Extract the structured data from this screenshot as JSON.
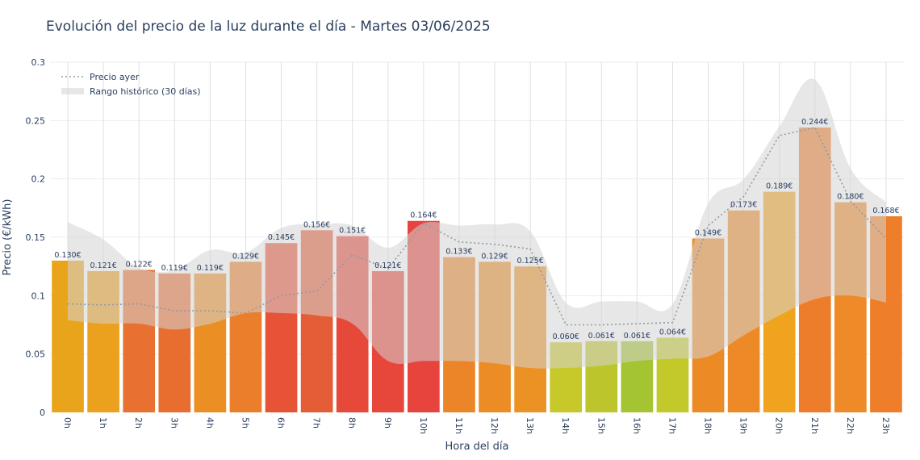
{
  "title": "Evolución del precio de la luz durante el día - Martes 03/06/2025",
  "chart_data": {
    "type": "bar",
    "title": "Evolución del precio de la luz durante el día - Martes 03/06/2025",
    "xlabel": "Hora del día",
    "ylabel": "Precio (€/kWh)",
    "ylim": [
      0,
      0.3
    ],
    "yticks": [
      0,
      0.05,
      0.1,
      0.15,
      0.2,
      0.25,
      0.3
    ],
    "ytick_labels": [
      "0",
      "0.05",
      "0.1",
      "0.15",
      "0.2",
      "0.25",
      "0.3"
    ],
    "grid": true,
    "legend_position": "top-left",
    "categories": [
      "0h",
      "1h",
      "2h",
      "3h",
      "4h",
      "5h",
      "6h",
      "7h",
      "8h",
      "9h",
      "10h",
      "11h",
      "12h",
      "13h",
      "14h",
      "15h",
      "16h",
      "17h",
      "18h",
      "19h",
      "20h",
      "21h",
      "22h",
      "23h"
    ],
    "series": [
      {
        "type": "bar",
        "values": [
          0.13,
          0.121,
          0.122,
          0.119,
          0.119,
          0.129,
          0.145,
          0.156,
          0.151,
          0.121,
          0.164,
          0.133,
          0.129,
          0.125,
          0.06,
          0.061,
          0.061,
          0.064,
          0.149,
          0.173,
          0.189,
          0.244,
          0.18,
          0.168
        ],
        "labels": [
          "0.130€",
          "0.121€",
          "0.122€",
          "0.119€",
          "0.119€",
          "0.129€",
          "0.145€",
          "0.156€",
          "0.151€",
          "0.121€",
          "0.164€",
          "0.133€",
          "0.129€",
          "0.125€",
          "0.060€",
          "0.061€",
          "0.061€",
          "0.064€",
          "0.149€",
          "0.173€",
          "0.189€",
          "0.244€",
          "0.180€",
          "0.168€"
        ],
        "colors": [
          "#eaa41c",
          "#eba01e",
          "#e87030",
          "#e86e30",
          "#eb8f25",
          "#eb7e2a",
          "#e65336",
          "#e55d36",
          "#e6483a",
          "#e7463a",
          "#e6443c",
          "#ec8528",
          "#ec8c25",
          "#ec9225",
          "#c7c82a",
          "#bcc62c",
          "#a5c431",
          "#c3c92a",
          "#ec8b25",
          "#ed8a27",
          "#efa31e",
          "#ed7d2a",
          "#ee8a28",
          "#ee7e29"
        ]
      },
      {
        "name": "Precio ayer",
        "type": "line",
        "style": "dotted",
        "color": "#8f9aa4",
        "values": [
          0.093,
          0.092,
          0.093,
          0.087,
          0.087,
          0.085,
          0.1,
          0.104,
          0.135,
          0.123,
          0.162,
          0.146,
          0.144,
          0.14,
          0.075,
          0.075,
          0.076,
          0.077,
          0.16,
          0.185,
          0.237,
          0.244,
          0.181,
          0.149
        ]
      },
      {
        "name": "Rango histórico (30 días)",
        "type": "area_band",
        "color": "#d3d3d3",
        "lower": [
          0.079,
          0.076,
          0.076,
          0.071,
          0.076,
          0.085,
          0.085,
          0.083,
          0.076,
          0.044,
          0.044,
          0.044,
          0.042,
          0.038,
          0.038,
          0.04,
          0.044,
          0.046,
          0.048,
          0.066,
          0.083,
          0.097,
          0.1,
          0.094
        ],
        "upper": [
          0.163,
          0.148,
          0.124,
          0.122,
          0.139,
          0.137,
          0.158,
          0.161,
          0.16,
          0.141,
          0.162,
          0.16,
          0.161,
          0.155,
          0.094,
          0.095,
          0.095,
          0.093,
          0.179,
          0.2,
          0.245,
          0.285,
          0.209,
          0.18
        ]
      }
    ]
  }
}
